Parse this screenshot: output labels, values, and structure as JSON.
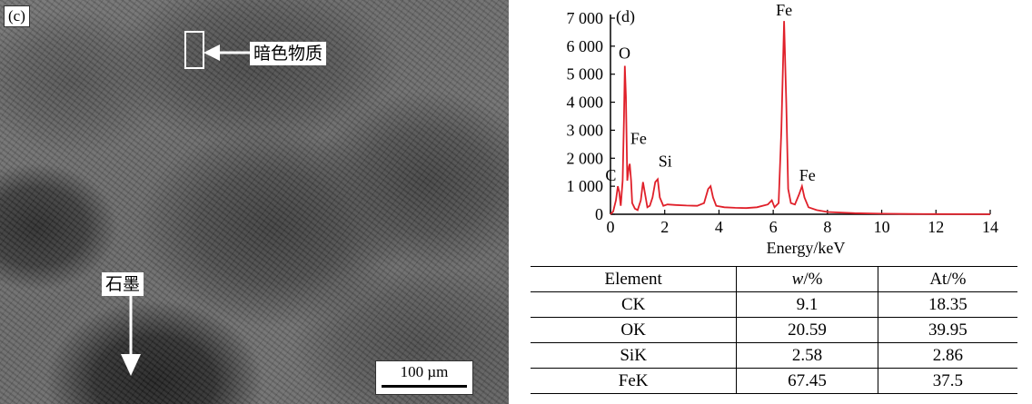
{
  "micrograph": {
    "panel_label": "(c)",
    "annotation_dark": "暗色物质",
    "annotation_graphite": "石墨",
    "scale_bar": "100 µm"
  },
  "chart_data": {
    "type": "line",
    "panel_label": "(d)",
    "xlabel": "Energy/keV",
    "ylabel": "",
    "xlim": [
      0,
      14
    ],
    "ylim": [
      0,
      7000
    ],
    "xticks": [
      0,
      2,
      4,
      6,
      8,
      10,
      12,
      14
    ],
    "yticks": [
      0,
      1000,
      2000,
      3000,
      4000,
      5000,
      6000,
      7000
    ],
    "ytick_labels": [
      "0",
      "1 000",
      "2 000",
      "3 000",
      "4 000",
      "5 000",
      "6 000",
      "7 000"
    ],
    "line_color": "#e0202a",
    "series": [
      {
        "x": [
          0.0,
          0.1,
          0.2,
          0.27,
          0.32,
          0.38,
          0.45,
          0.5,
          0.53,
          0.57,
          0.62,
          0.68,
          0.71,
          0.76,
          0.8,
          0.9,
          1.0,
          1.12,
          1.2,
          1.28,
          1.36,
          1.45,
          1.55,
          1.65,
          1.74,
          1.82,
          1.95,
          2.1,
          2.4,
          2.8,
          3.2,
          3.45,
          3.6,
          3.69,
          3.78,
          3.9,
          4.2,
          4.6,
          5.0,
          5.4,
          5.8,
          5.95,
          6.05,
          6.2,
          6.3,
          6.4,
          6.48,
          6.55,
          6.65,
          6.8,
          6.95,
          7.06,
          7.15,
          7.3,
          7.6,
          8.0,
          9.0,
          10.0,
          11.0,
          12.0,
          13.0,
          14.0
        ],
        "y": [
          0,
          100,
          500,
          1000,
          800,
          300,
          1200,
          3500,
          5300,
          4200,
          1200,
          1700,
          1800,
          1200,
          400,
          200,
          150,
          500,
          1150,
          700,
          250,
          300,
          600,
          1150,
          1250,
          600,
          300,
          350,
          330,
          310,
          300,
          400,
          900,
          1000,
          600,
          300,
          250,
          230,
          220,
          250,
          350,
          500,
          250,
          400,
          3000,
          6900,
          4000,
          900,
          400,
          350,
          700,
          1000,
          600,
          250,
          150,
          80,
          40,
          20,
          10,
          5,
          2,
          0
        ]
      }
    ],
    "annotations": [
      {
        "text": "O",
        "x": 0.52,
        "y": 5300
      },
      {
        "text": "C",
        "x": 0.28,
        "y": 1000
      },
      {
        "text": "Fe",
        "x": 0.7,
        "y": 1800
      },
      {
        "text": "Si",
        "x": 1.75,
        "y": 1250
      },
      {
        "text": "Fe",
        "x": 6.4,
        "y": 6900
      },
      {
        "text": "Fe",
        "x": 7.06,
        "y": 1000
      }
    ]
  },
  "table": {
    "headers": [
      "Element",
      "w/%",
      "At/%"
    ],
    "rows": [
      [
        "CK",
        "9.1",
        "18.35"
      ],
      [
        "OK",
        "20.59",
        "39.95"
      ],
      [
        "SiK",
        "2.58",
        "2.86"
      ],
      [
        "FeK",
        "67.45",
        "37.5"
      ]
    ]
  }
}
